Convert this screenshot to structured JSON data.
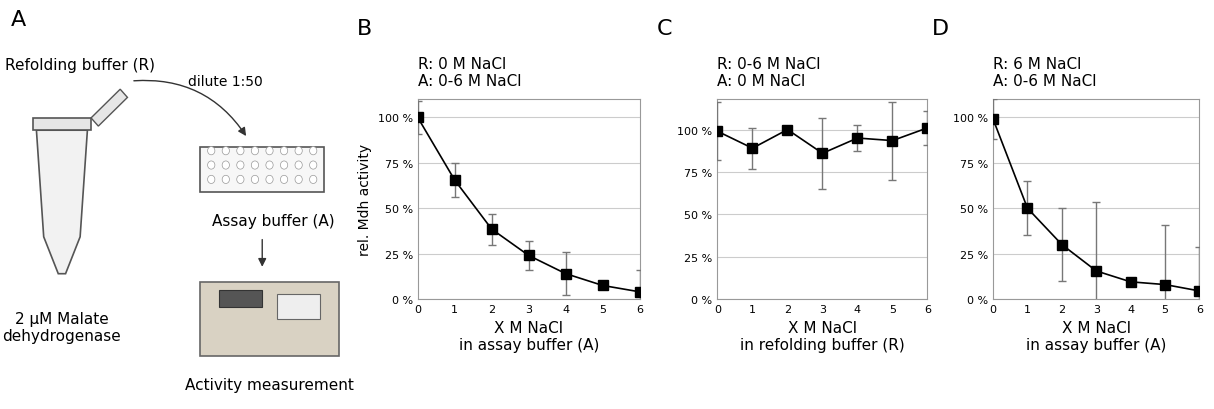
{
  "panel_a": {
    "label": "A",
    "refolding_buffer": "Refolding buffer (R)",
    "dilution": "dilute 1:50",
    "assay_buffer": "Assay buffer (A)",
    "protein": "2 µM Malate\ndehydrogenase",
    "measurement": "Activity measurement"
  },
  "chart_data": [
    {
      "panel": "B",
      "type": "line",
      "title": "R: 0 M NaCl\nA: 0-6 M NaCl",
      "x_label": "X M NaCl\nin assay buffer (A)",
      "y_label": "rel. Mdh activity",
      "x": [
        0,
        1,
        2,
        3,
        4,
        5,
        6
      ],
      "values": [
        100,
        65.5,
        38.5,
        24,
        14,
        7.5,
        4
      ],
      "errors": [
        9,
        9.5,
        8.5,
        8,
        12,
        2,
        12
      ],
      "xlim": [
        0,
        6
      ],
      "ylim": [
        0,
        110
      ],
      "xticks": [
        0,
        1,
        2,
        3,
        4,
        5,
        6
      ],
      "yticks": [
        {
          "value": 0,
          "label": "0 %"
        },
        {
          "value": 25,
          "label": "25 %"
        },
        {
          "value": 50,
          "label": "50 %"
        },
        {
          "value": 75,
          "label": "75 %"
        },
        {
          "value": 100,
          "label": "100 %"
        }
      ],
      "grid": true,
      "color": "#000000",
      "marker": "square",
      "line_style": "solid"
    },
    {
      "panel": "C",
      "type": "line",
      "title": "R: 0-6 M NaCl\nA: 0 M NaCl",
      "x_label": "X M NaCl\nin refolding buffer (R)",
      "x": [
        0,
        1,
        2,
        3,
        4,
        5,
        6
      ],
      "values": [
        99,
        89,
        100,
        86,
        95,
        93.5,
        101
      ],
      "errors": [
        17,
        12,
        1,
        21,
        7.5,
        23,
        10
      ],
      "xlim": [
        0,
        6
      ],
      "ylim": [
        0,
        118
      ],
      "xticks": [
        0,
        1,
        2,
        3,
        4,
        5,
        6
      ],
      "yticks": [
        {
          "value": 0,
          "label": "0 %"
        },
        {
          "value": 25,
          "label": "25 %"
        },
        {
          "value": 50,
          "label": "50 %"
        },
        {
          "value": 75,
          "label": "75 %"
        },
        {
          "value": 100,
          "label": "100 %"
        }
      ],
      "grid": true,
      "color": "#000000",
      "marker": "square",
      "line_style": "solid"
    },
    {
      "panel": "D",
      "type": "line",
      "title": "R: 6 M NaCl\nA: 0-6 M NaCl",
      "x_label": "X M NaCl\nin assay buffer (A)",
      "x": [
        0,
        1,
        2,
        3,
        4,
        5,
        6
      ],
      "values": [
        99,
        50,
        30,
        15.5,
        9.5,
        8,
        4.5
      ],
      "errors": [
        11,
        15,
        20,
        38,
        2,
        33,
        24
      ],
      "xlim": [
        0,
        6
      ],
      "ylim": [
        0,
        110
      ],
      "xticks": [
        0,
        1,
        2,
        3,
        4,
        5,
        6
      ],
      "yticks": [
        {
          "value": 0,
          "label": "0 %"
        },
        {
          "value": 25,
          "label": "25 %"
        },
        {
          "value": 50,
          "label": "50 %"
        },
        {
          "value": 75,
          "label": "75 %"
        },
        {
          "value": 100,
          "label": "100 %"
        }
      ],
      "grid": true,
      "color": "#000000",
      "marker": "square",
      "line_style": "solid"
    }
  ]
}
